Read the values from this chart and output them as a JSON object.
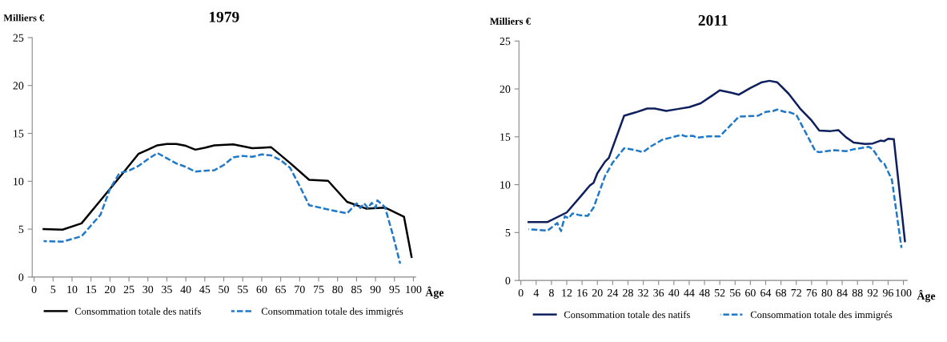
{
  "chart_data": [
    {
      "type": "line",
      "title": "1979",
      "ylabel": "Milliers €",
      "xlabel": "Âge",
      "xlim": [
        -0.5,
        100.6
      ],
      "xticks": [
        0,
        5,
        10,
        15,
        20,
        25,
        30,
        35,
        40,
        45,
        50,
        55,
        60,
        65,
        70,
        75,
        80,
        85,
        90,
        95,
        100
      ],
      "ylim": [
        0,
        25
      ],
      "yticks": [
        0,
        5,
        10,
        15,
        20,
        25
      ],
      "grid": false,
      "legend": "bottom",
      "series": [
        {
          "name": "Consommation totale des natifs",
          "color": "#000000",
          "line_style": "solid",
          "x": [
            2.5,
            7.5,
            12.5,
            17.5,
            22.5,
            27.5,
            30,
            32.5,
            35,
            37.5,
            40,
            42.5,
            45,
            47.5,
            52.5,
            57.5,
            60,
            62.5,
            67.5,
            72.5,
            77.5,
            82.5,
            87.5,
            92.5,
            97.5,
            99.5
          ],
          "values": [
            5.0,
            4.95,
            5.6,
            8.0,
            10.4,
            12.85,
            13.3,
            13.75,
            13.9,
            13.9,
            13.7,
            13.3,
            13.5,
            13.75,
            13.85,
            13.45,
            13.5,
            13.55,
            11.9,
            10.15,
            10.05,
            7.85,
            7.15,
            7.25,
            6.3,
            2.1
          ]
        },
        {
          "name": "Consommation totale des immigrés",
          "color": "#1f78c8",
          "line_style": "dashed",
          "x": [
            2.5,
            7.5,
            12.5,
            17.5,
            20,
            22.5,
            25,
            27.5,
            30,
            32.5,
            35,
            37.5,
            40,
            42.5,
            45,
            47.5,
            50,
            52.5,
            55,
            57.5,
            60,
            62.5,
            65,
            67.5,
            70,
            72.5,
            77.5,
            82.5,
            85,
            86,
            87,
            88,
            89,
            90,
            90.5,
            92.5,
            94.5,
            96.5
          ],
          "values": [
            3.75,
            3.7,
            4.25,
            6.5,
            9.2,
            10.85,
            11.1,
            11.6,
            12.3,
            12.95,
            12.4,
            11.85,
            11.5,
            11.0,
            11.1,
            11.15,
            11.7,
            12.5,
            12.65,
            12.55,
            12.8,
            12.7,
            12.2,
            11.4,
            9.5,
            7.5,
            7.05,
            6.65,
            7.7,
            7.2,
            7.7,
            7.2,
            7.75,
            7.2,
            8.0,
            7.3,
            4.5,
            1.4
          ]
        }
      ]
    },
    {
      "type": "line",
      "title": "2011",
      "ylabel": "Milliers €",
      "xlabel": "Âge",
      "xlim": [
        -0.5,
        101
      ],
      "xticks": [
        0,
        4,
        8,
        12,
        16,
        20,
        24,
        28,
        32,
        36,
        40,
        44,
        48,
        52,
        56,
        60,
        64,
        68,
        72,
        76,
        80,
        84,
        88,
        92,
        96,
        100
      ],
      "ylim": [
        0,
        25
      ],
      "yticks": [
        0,
        5,
        10,
        15,
        20,
        25
      ],
      "grid": false,
      "legend": "bottom",
      "series": [
        {
          "name": "Consommation totale des natifs",
          "color": "#0d1f5c",
          "line_style": "solid",
          "x": [
            2,
            7,
            12,
            16,
            18,
            19,
            20,
            22,
            23,
            27,
            30,
            33,
            35,
            38,
            41,
            44,
            47,
            50,
            52,
            55,
            57,
            60,
            63,
            65,
            67,
            70,
            73,
            76,
            78,
            81,
            83,
            85,
            87,
            90,
            92,
            94,
            95,
            96,
            97.5,
            100.4
          ],
          "values": [
            6.1,
            6.1,
            7.1,
            8.95,
            9.9,
            10.2,
            11.2,
            12.4,
            12.8,
            17.2,
            17.55,
            17.95,
            17.95,
            17.7,
            17.9,
            18.1,
            18.5,
            19.3,
            19.85,
            19.6,
            19.4,
            20.1,
            20.7,
            20.85,
            20.7,
            19.5,
            17.95,
            16.7,
            15.65,
            15.6,
            15.7,
            14.95,
            14.4,
            14.25,
            14.3,
            14.6,
            14.55,
            14.8,
            14.75,
            4.1
          ]
        },
        {
          "name": "Consommation totale des immigrés",
          "color": "#1f78c8",
          "line_style": "dashed",
          "x": [
            2,
            7,
            9.5,
            10.5,
            11.5,
            12.5,
            13.5,
            15.5,
            17.5,
            19,
            22,
            24,
            27,
            28,
            30,
            32,
            34,
            37,
            40,
            42,
            43,
            45,
            46,
            49,
            52,
            57,
            59,
            62,
            64,
            66,
            67,
            69,
            70,
            72,
            77,
            78,
            82,
            85,
            87,
            91,
            92,
            94,
            95,
            97,
            99.5
          ],
          "values": [
            5.35,
            5.2,
            6.0,
            5.15,
            6.7,
            6.5,
            7.0,
            6.8,
            6.75,
            7.6,
            10.9,
            12.3,
            13.8,
            13.75,
            13.6,
            13.4,
            14.0,
            14.7,
            15.0,
            15.2,
            15.05,
            15.1,
            14.9,
            15.05,
            15.05,
            17.1,
            17.15,
            17.2,
            17.6,
            17.7,
            17.85,
            17.6,
            17.6,
            17.3,
            13.5,
            13.4,
            13.6,
            13.5,
            13.7,
            13.95,
            13.7,
            12.5,
            12.2,
            10.5,
            3.4
          ]
        }
      ]
    }
  ]
}
